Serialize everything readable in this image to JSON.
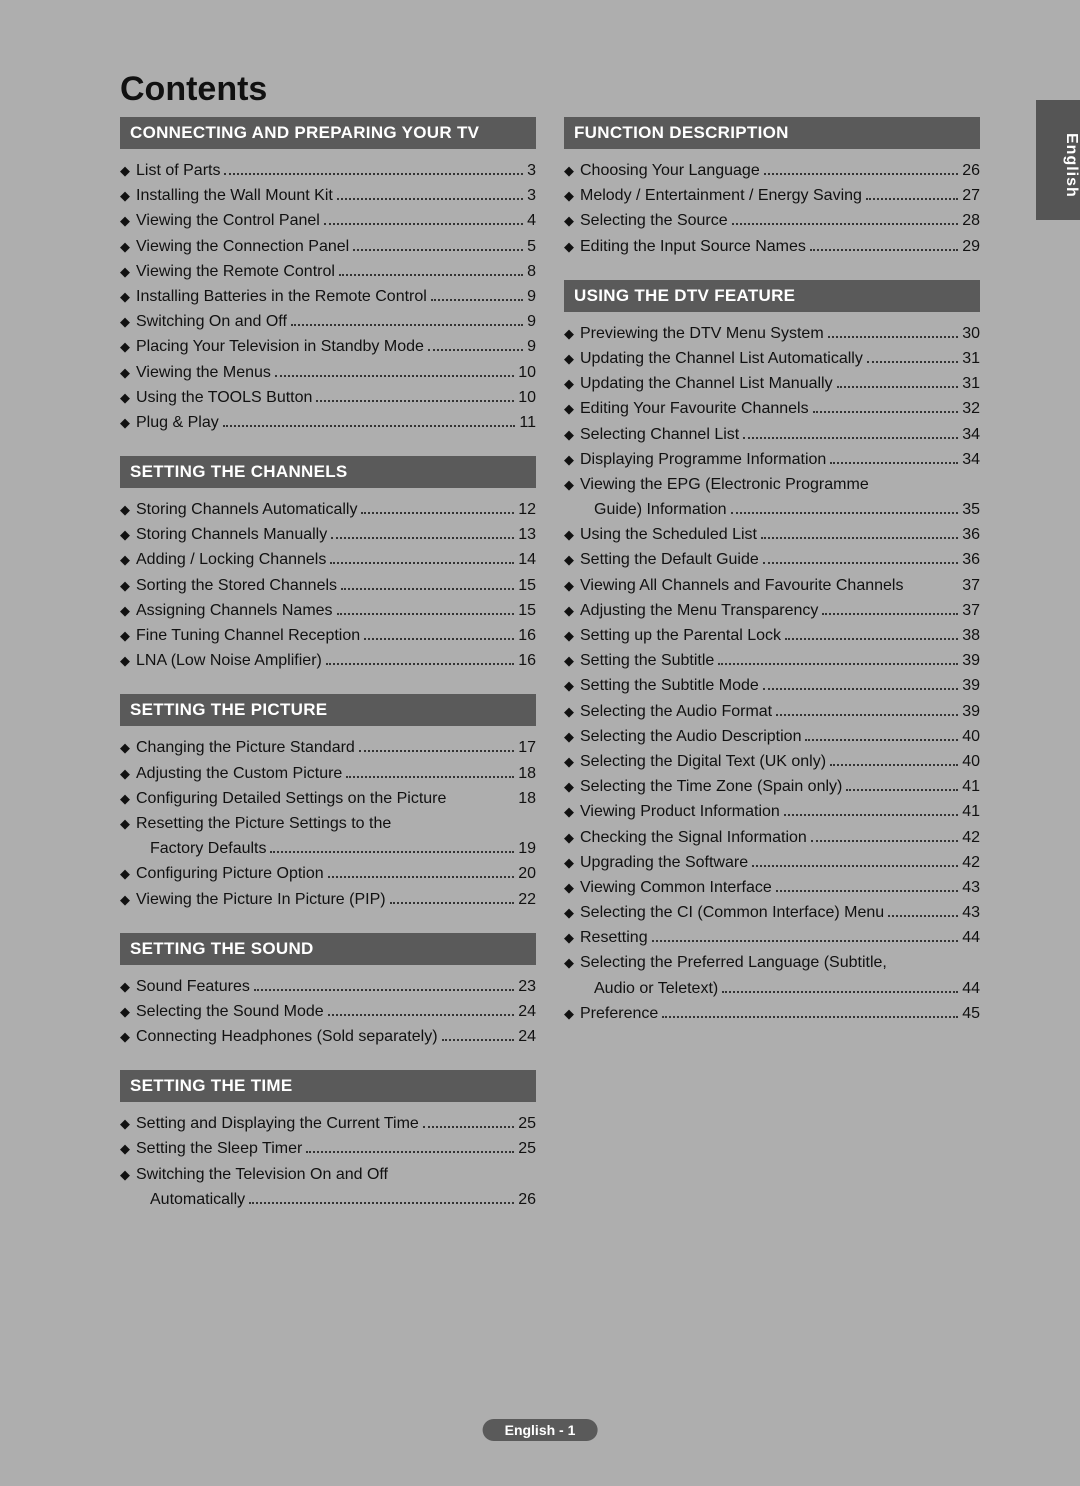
{
  "title": "Contents",
  "side_tab": "English",
  "footer": "English - 1",
  "colors": {
    "page_bg": "#aeaeae",
    "header_bg": "#5a5a5a",
    "header_fg": "#ffffff",
    "text": "#111111"
  },
  "left_sections": [
    {
      "title": "CONNECTING AND PREPARING YOUR TV",
      "items": [
        {
          "label": "List of Parts",
          "page": "3"
        },
        {
          "label": "Installing the Wall Mount Kit",
          "page": "3"
        },
        {
          "label": "Viewing the Control Panel",
          "page": "4"
        },
        {
          "label": "Viewing the Connection Panel",
          "page": "5"
        },
        {
          "label": "Viewing the Remote Control",
          "page": "8"
        },
        {
          "label": "Installing Batteries in the Remote Control",
          "page": "9"
        },
        {
          "label": "Switching On and Off",
          "page": "9"
        },
        {
          "label": "Placing Your Television in Standby Mode",
          "page": "9"
        },
        {
          "label": "Viewing the Menus",
          "page": "10"
        },
        {
          "label": "Using the TOOLS Button",
          "page": "10"
        },
        {
          "label": "Plug & Play",
          "page": "11"
        }
      ]
    },
    {
      "title": "SETTING THE CHANNELS",
      "items": [
        {
          "label": "Storing Channels Automatically",
          "page": "12"
        },
        {
          "label": "Storing Channels Manually",
          "page": "13"
        },
        {
          "label": "Adding / Locking Channels",
          "page": "14"
        },
        {
          "label": "Sorting the Stored Channels",
          "page": "15"
        },
        {
          "label": "Assigning Channels Names",
          "page": "15"
        },
        {
          "label": "Fine Tuning Channel Reception",
          "page": "16"
        },
        {
          "label": "LNA (Low Noise Amplifier)",
          "page": "16"
        }
      ]
    },
    {
      "title": "SETTING THE PICTURE",
      "items": [
        {
          "label": "Changing the Picture Standard",
          "page": "17"
        },
        {
          "label": "Adjusting the Custom Picture",
          "page": "18"
        },
        {
          "label": "Configuring Detailed Settings on the Picture",
          "page": "18",
          "tight": true
        },
        {
          "label": "Resetting the Picture Settings to the",
          "cont": true
        },
        {
          "sub": true,
          "label": "Factory Defaults",
          "page": "19"
        },
        {
          "label": "Configuring Picture Option",
          "page": "20"
        },
        {
          "label": "Viewing the Picture In Picture (PIP)",
          "page": "22"
        }
      ]
    },
    {
      "title": "SETTING THE SOUND",
      "items": [
        {
          "label": "Sound Features",
          "page": "23"
        },
        {
          "label": "Selecting the Sound Mode",
          "page": "24"
        },
        {
          "label": "Connecting Headphones (Sold separately)",
          "page": "24"
        }
      ]
    },
    {
      "title": "SETTING THE TIME",
      "items": [
        {
          "label": "Setting and Displaying the Current Time",
          "page": "25"
        },
        {
          "label": "Setting the Sleep Timer",
          "page": "25"
        },
        {
          "label": "Switching the Television On and Off",
          "cont": true
        },
        {
          "sub": true,
          "label": "Automatically",
          "page": "26"
        }
      ]
    }
  ],
  "right_sections": [
    {
      "title": "FUNCTION DESCRIPTION",
      "items": [
        {
          "label": "Choosing Your Language",
          "page": "26"
        },
        {
          "label": "Melody / Entertainment / Energy Saving",
          "page": "27"
        },
        {
          "label": "Selecting the Source",
          "page": "28"
        },
        {
          "label": "Editing the Input Source Names",
          "page": "29"
        }
      ]
    },
    {
      "title": "USING THE DTV FEATURE",
      "items": [
        {
          "label": "Previewing the DTV Menu System",
          "page": "30"
        },
        {
          "label": "Updating the Channel List Automatically",
          "page": "31"
        },
        {
          "label": "Updating the Channel List Manually",
          "page": "31"
        },
        {
          "label": "Editing Your Favourite Channels",
          "page": "32"
        },
        {
          "label": "Selecting Channel List",
          "page": "34"
        },
        {
          "label": "Displaying Programme Information",
          "page": "34"
        },
        {
          "label": "Viewing the EPG (Electronic Programme",
          "cont": true
        },
        {
          "sub": true,
          "label": "Guide) Information",
          "page": "35"
        },
        {
          "label": "Using the Scheduled List",
          "page": "36"
        },
        {
          "label": "Setting the Default Guide",
          "page": "36"
        },
        {
          "label": "Viewing All Channels and Favourite Channels",
          "page": "37",
          "tight": true
        },
        {
          "label": "Adjusting the Menu Transparency",
          "page": "37"
        },
        {
          "label": "Setting up the Parental Lock",
          "page": "38"
        },
        {
          "label": "Setting the Subtitle",
          "page": "39"
        },
        {
          "label": "Setting the Subtitle Mode",
          "page": "39"
        },
        {
          "label": "Selecting the Audio Format",
          "page": "39"
        },
        {
          "label": "Selecting the Audio Description",
          "page": "40"
        },
        {
          "label": "Selecting the Digital Text (UK only)",
          "page": "40"
        },
        {
          "label": "Selecting the Time Zone (Spain only)",
          "page": "41"
        },
        {
          "label": "Viewing Product Information",
          "page": "41"
        },
        {
          "label": "Checking the Signal Information",
          "page": "42"
        },
        {
          "label": "Upgrading the Software",
          "page": "42"
        },
        {
          "label": "Viewing Common Interface",
          "page": "43"
        },
        {
          "label": "Selecting the CI (Common Interface) Menu",
          "page": "43"
        },
        {
          "label": "Resetting",
          "page": "44"
        },
        {
          "label": "Selecting the Preferred Language (Subtitle,",
          "cont": true
        },
        {
          "sub": true,
          "label": "Audio or Teletext)",
          "page": "44"
        },
        {
          "label": "Preference",
          "page": "45"
        }
      ]
    }
  ]
}
